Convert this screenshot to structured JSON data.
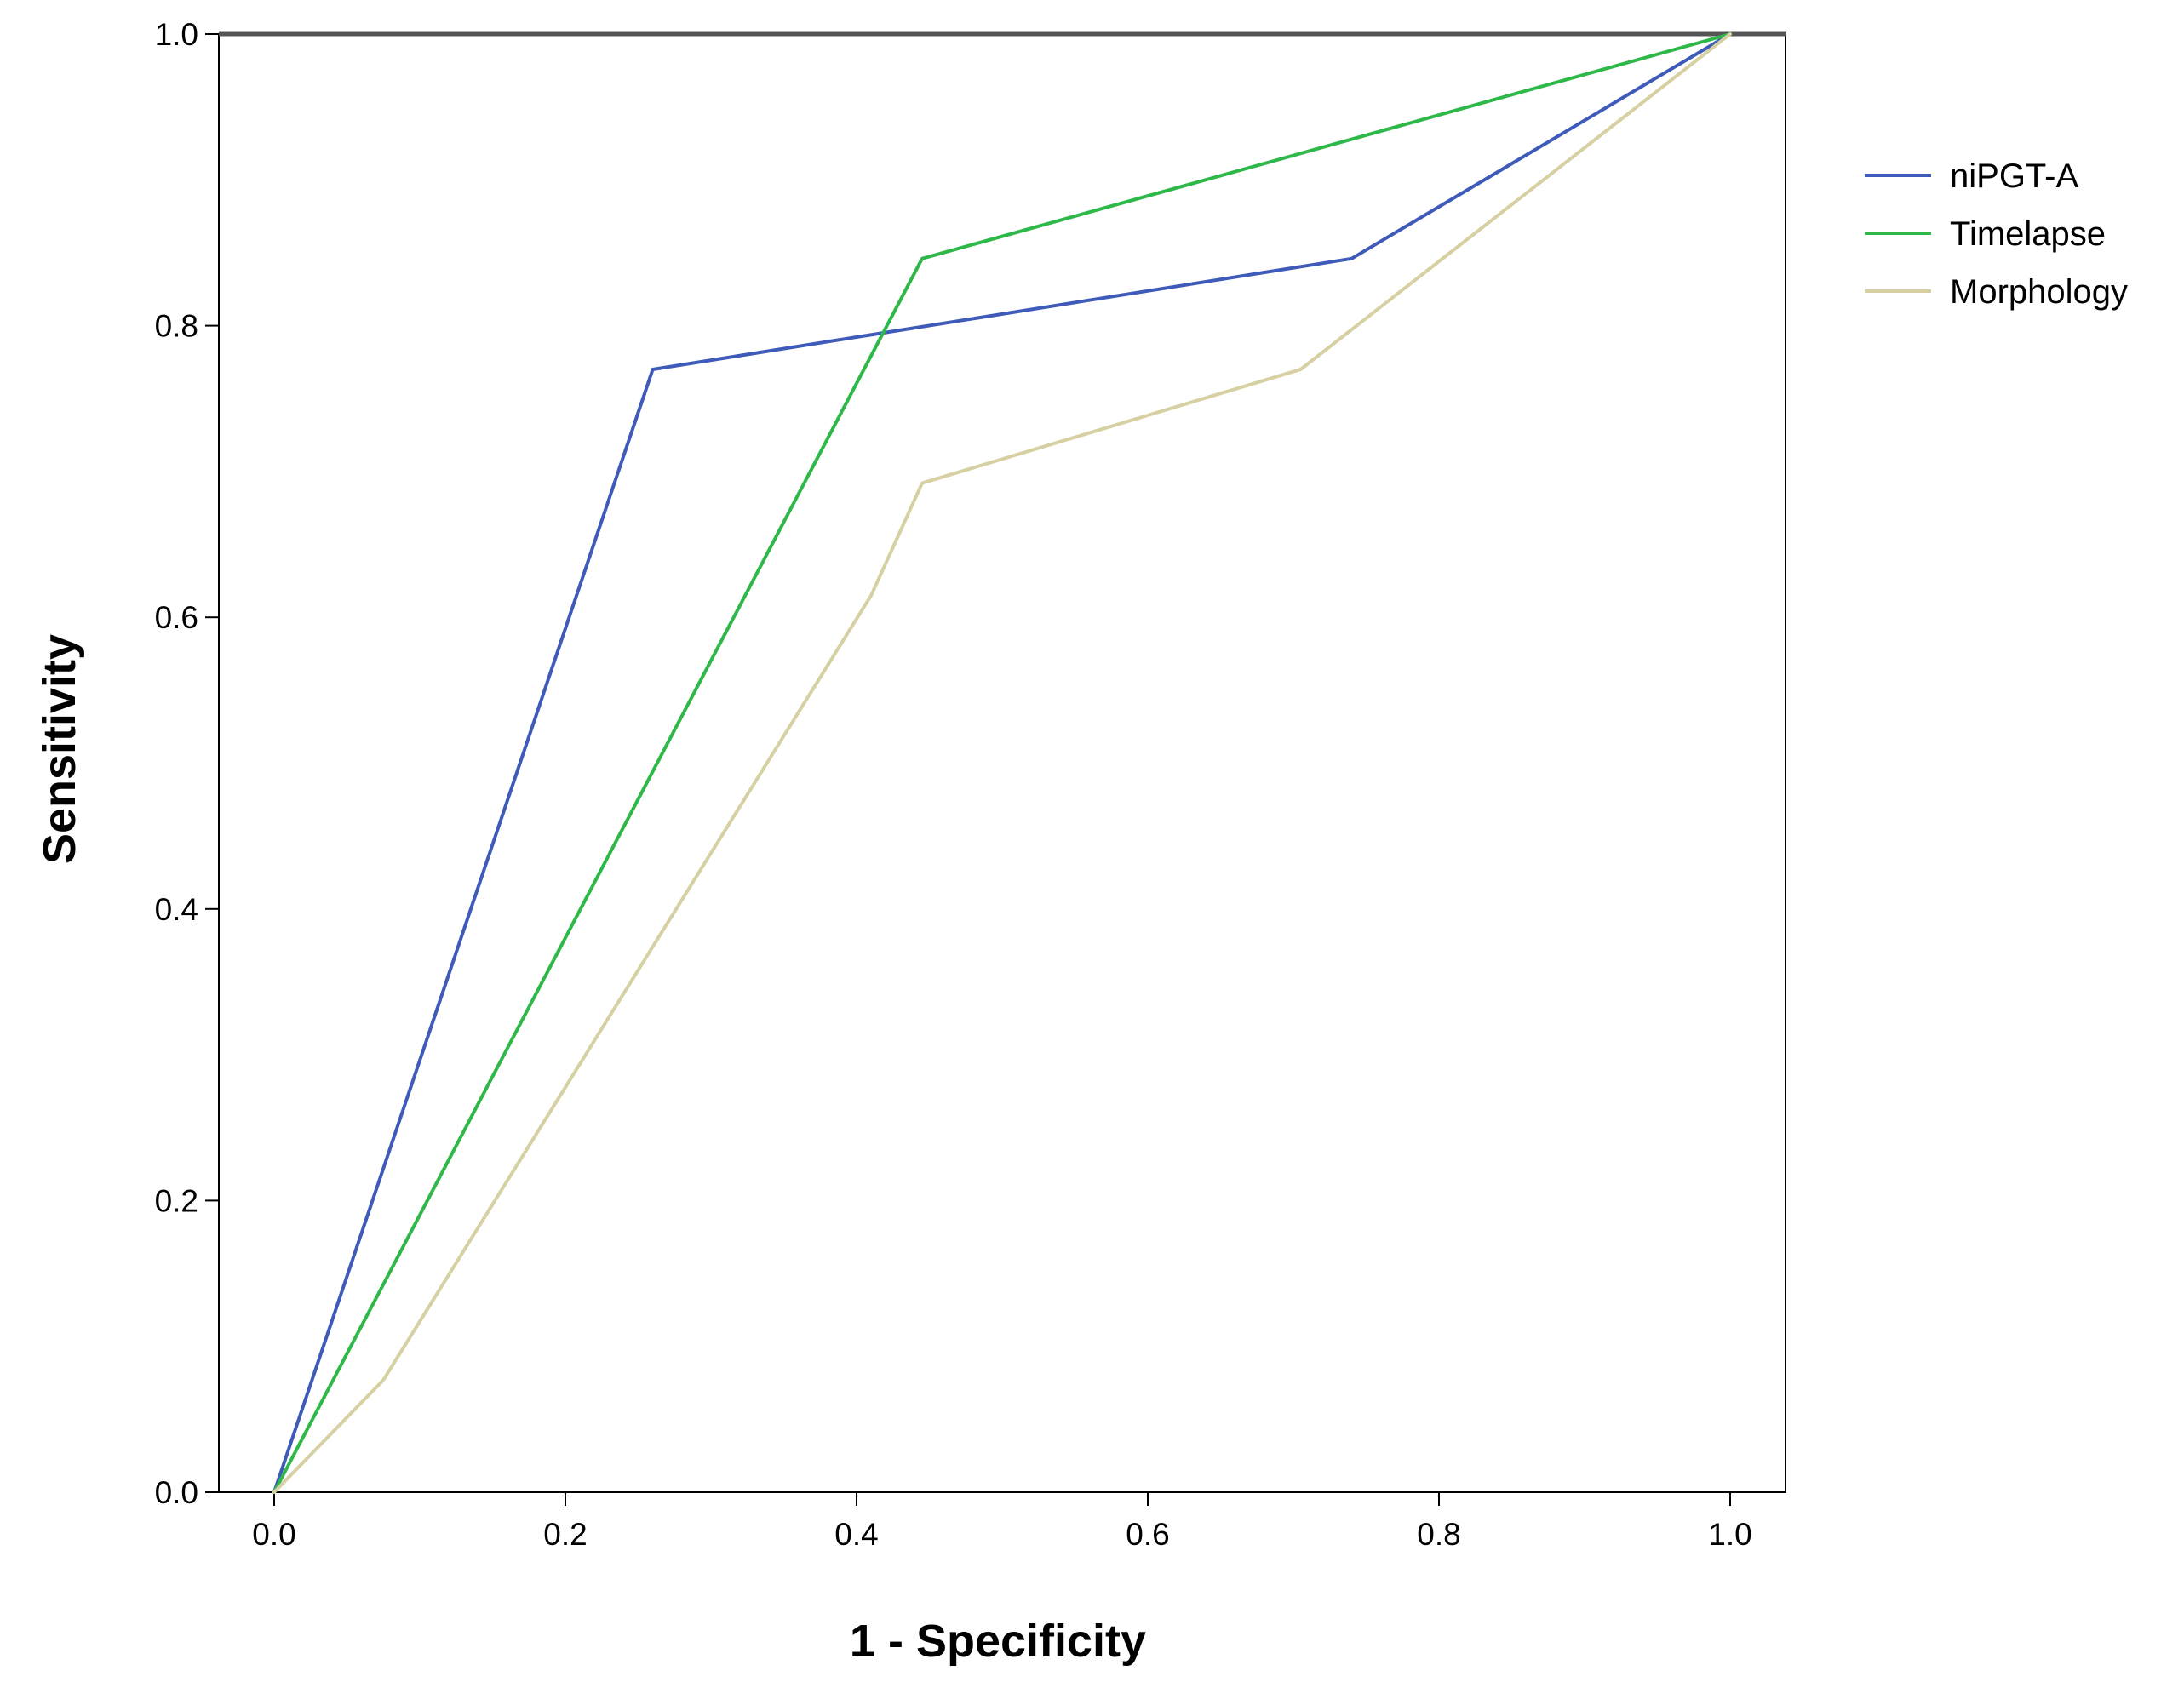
{
  "chart_data": {
    "type": "line",
    "title": "",
    "xlabel": "1 - Specificity",
    "ylabel": "Sensitivity",
    "xlim": [
      0.0,
      1.0
    ],
    "ylim": [
      0.0,
      1.0
    ],
    "x_ticks": [
      "0.0",
      "0.2",
      "0.4",
      "0.6",
      "0.8",
      "1.0"
    ],
    "y_ticks": [
      "0.0",
      "0.2",
      "0.4",
      "0.6",
      "0.8",
      "1.0"
    ],
    "grid": false,
    "legend_position": "right",
    "series": [
      {
        "name": "niPGT-A",
        "color": "#3f5bb9",
        "points": [
          [
            0.0,
            0.0
          ],
          [
            0.26,
            0.77
          ],
          [
            0.74,
            0.846
          ],
          [
            1.0,
            1.0
          ]
        ]
      },
      {
        "name": "Timelapse",
        "color": "#2fb84a",
        "points": [
          [
            0.0,
            0.0
          ],
          [
            0.445,
            0.846
          ],
          [
            1.0,
            1.0
          ]
        ]
      },
      {
        "name": "Morphology",
        "color": "#d6d0a2",
        "points": [
          [
            0.0,
            0.0
          ],
          [
            0.075,
            0.077
          ],
          [
            0.41,
            0.615
          ],
          [
            0.445,
            0.692
          ],
          [
            0.705,
            0.77
          ],
          [
            1.0,
            1.0
          ]
        ]
      }
    ]
  }
}
